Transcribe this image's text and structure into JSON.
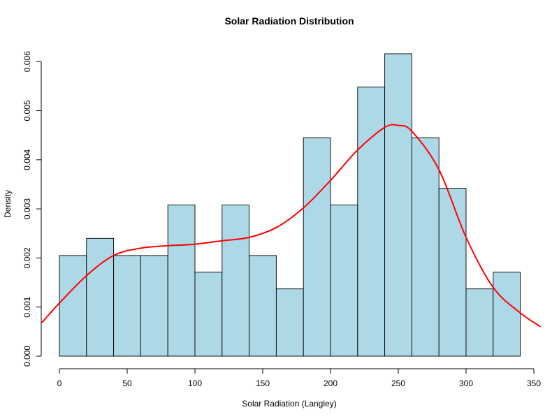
{
  "chart_data": {
    "type": "bar",
    "subtype": "histogram-with-density",
    "title": "Solar Radiation Distribution",
    "xlabel": "Solar Radiation (Langley)",
    "ylabel": "Density",
    "xlim": [
      0,
      350
    ],
    "ylim": [
      0,
      0.006
    ],
    "grid": false,
    "colors": {
      "bar_fill": "#add8e6",
      "bar_stroke": "#000000",
      "density_line": "#ff0000"
    },
    "bins": [
      {
        "x0": 0,
        "x1": 20,
        "density": 0.00205
      },
      {
        "x0": 20,
        "x1": 40,
        "density": 0.0024
      },
      {
        "x0": 40,
        "x1": 60,
        "density": 0.00205
      },
      {
        "x0": 60,
        "x1": 80,
        "density": 0.00205
      },
      {
        "x0": 80,
        "x1": 100,
        "density": 0.00308
      },
      {
        "x0": 100,
        "x1": 120,
        "density": 0.00171
      },
      {
        "x0": 120,
        "x1": 140,
        "density": 0.00308
      },
      {
        "x0": 140,
        "x1": 160,
        "density": 0.00205
      },
      {
        "x0": 160,
        "x1": 180,
        "density": 0.00137
      },
      {
        "x0": 180,
        "x1": 200,
        "density": 0.00445
      },
      {
        "x0": 200,
        "x1": 220,
        "density": 0.00308
      },
      {
        "x0": 220,
        "x1": 240,
        "density": 0.00548
      },
      {
        "x0": 240,
        "x1": 260,
        "density": 0.00616
      },
      {
        "x0": 260,
        "x1": 280,
        "density": 0.00445
      },
      {
        "x0": 280,
        "x1": 300,
        "density": 0.00342
      },
      {
        "x0": 300,
        "x1": 320,
        "density": 0.00137
      },
      {
        "x0": 320,
        "x1": 340,
        "density": 0.00171
      }
    ],
    "density_curve": {
      "x": [
        -13,
        0,
        20,
        40,
        60,
        80,
        100,
        120,
        140,
        160,
        180,
        200,
        220,
        240,
        250,
        260,
        280,
        300,
        320,
        340,
        355
      ],
      "y": [
        0.00068,
        0.00108,
        0.00164,
        0.00205,
        0.0022,
        0.00225,
        0.00228,
        0.00235,
        0.00242,
        0.00262,
        0.00302,
        0.00358,
        0.0042,
        0.00466,
        0.0047,
        0.00458,
        0.0038,
        0.00242,
        0.0014,
        0.00088,
        0.0006
      ]
    },
    "x_ticks": [
      0,
      50,
      100,
      150,
      200,
      250,
      300,
      350
    ],
    "y_ticks": [
      0.0,
      0.001,
      0.002,
      0.003,
      0.004,
      0.005,
      0.006
    ],
    "x_tick_labels": [
      "0",
      "50",
      "100",
      "150",
      "200",
      "250",
      "300",
      "350"
    ],
    "y_tick_labels": [
      "0.000",
      "0.001",
      "0.002",
      "0.003",
      "0.004",
      "0.005",
      "0.006"
    ]
  }
}
